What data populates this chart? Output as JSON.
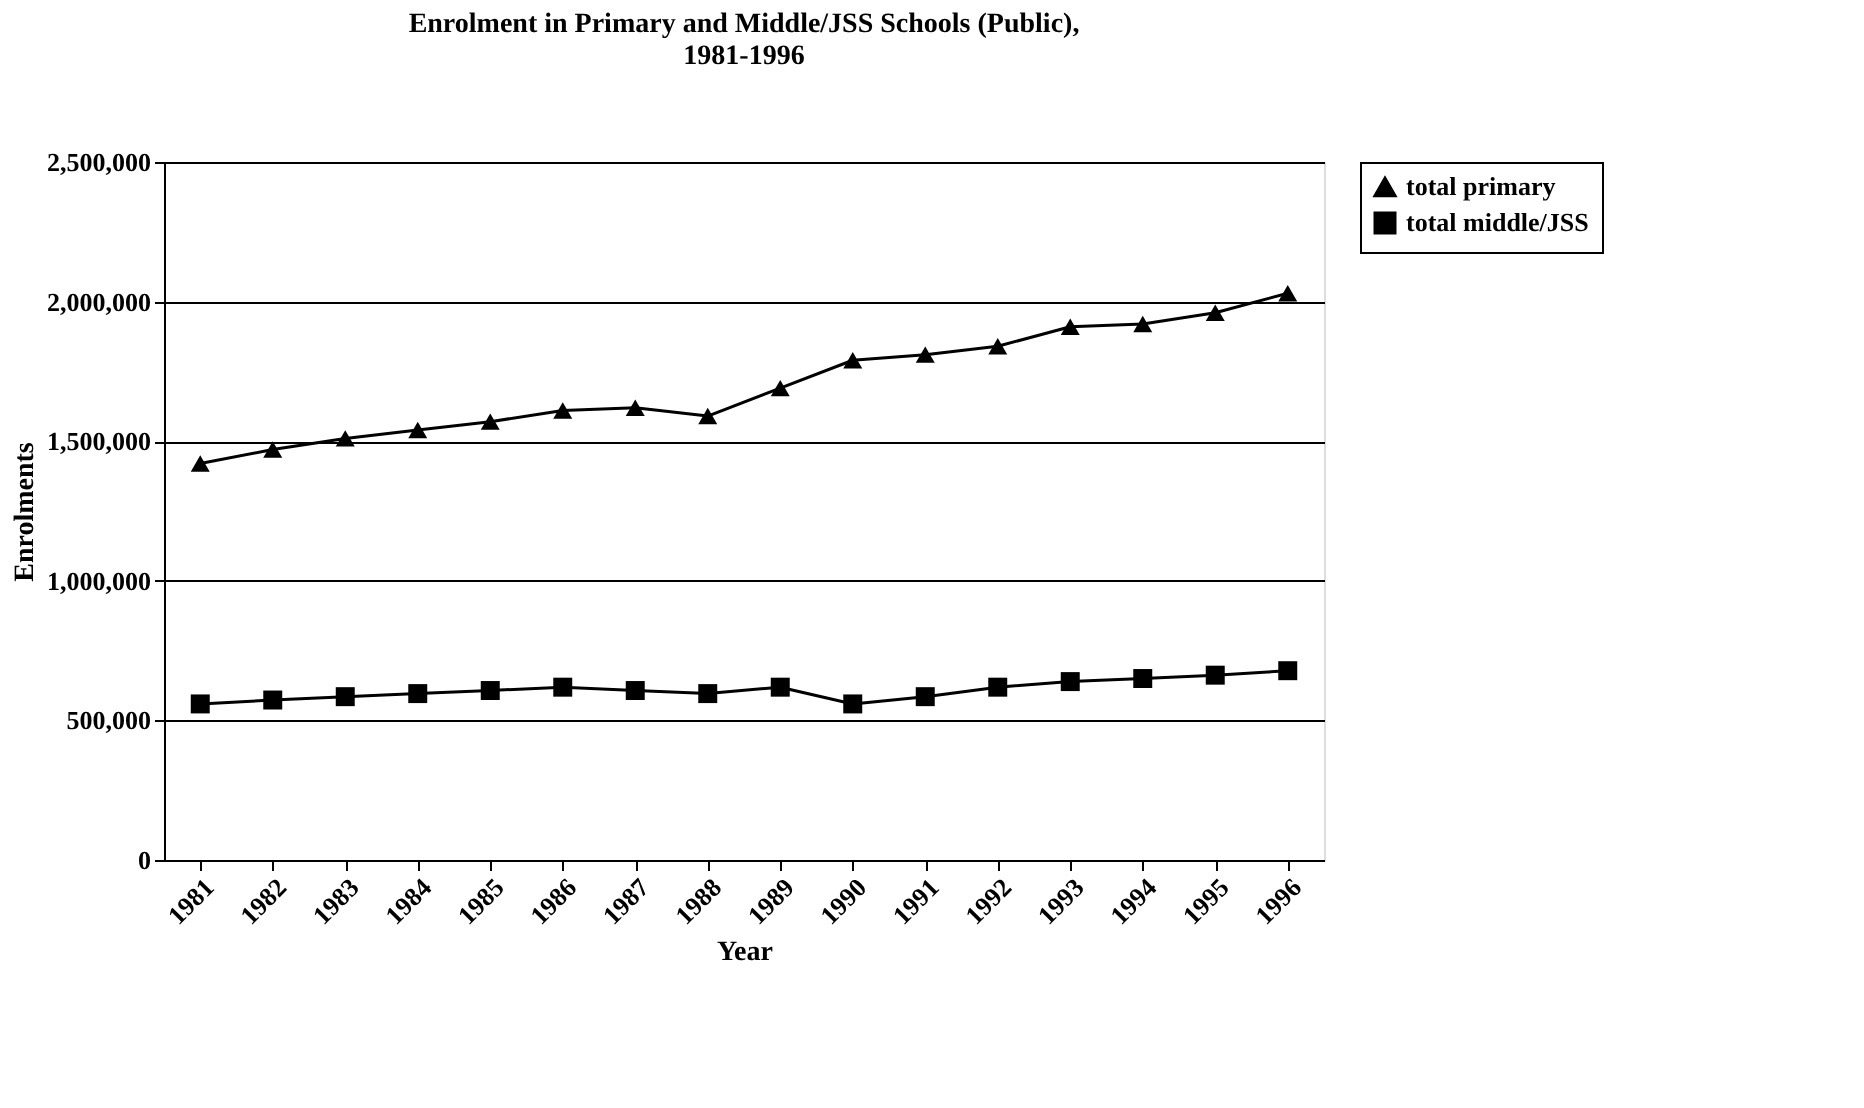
{
  "chart_data": {
    "type": "line",
    "title": [
      "Enrolment in Primary and Middle/JSS Schools (Public),",
      "1981-1996"
    ],
    "xlabel": "Year",
    "ylabel": "Enrolments",
    "categories": [
      "1981",
      "1982",
      "1983",
      "1984",
      "1985",
      "1986",
      "1987",
      "1988",
      "1989",
      "1990",
      "1991",
      "1992",
      "1993",
      "1994",
      "1995",
      "1996"
    ],
    "series": [
      {
        "name": "total primary",
        "color": "#000000",
        "marker": "triangle",
        "values": [
          1420000,
          1470000,
          1510000,
          1540000,
          1570000,
          1610000,
          1620000,
          1590000,
          1690000,
          1790000,
          1810000,
          1840000,
          1910000,
          1920000,
          1960000,
          2030000
        ]
      },
      {
        "name": "total middle/JSS",
        "color": "#000000",
        "marker": "square",
        "values": [
          559000,
          573000,
          585000,
          596000,
          607000,
          619000,
          607000,
          596000,
          619000,
          559000,
          585000,
          619000,
          639000,
          650000,
          662000,
          678000
        ]
      }
    ],
    "ylim": [
      0,
      2500000
    ],
    "yticks": [
      {
        "value": 0,
        "label": "0"
      },
      {
        "value": 500000,
        "label": "500,000"
      },
      {
        "value": 1000000,
        "label": "1,000,000"
      },
      {
        "value": 1500000,
        "label": "1,500,000"
      },
      {
        "value": 2000000,
        "label": "2,000,000"
      },
      {
        "value": 2500000,
        "label": "2,500,000"
      }
    ],
    "grid": "y",
    "legend": "right",
    "line_style": "solid"
  }
}
